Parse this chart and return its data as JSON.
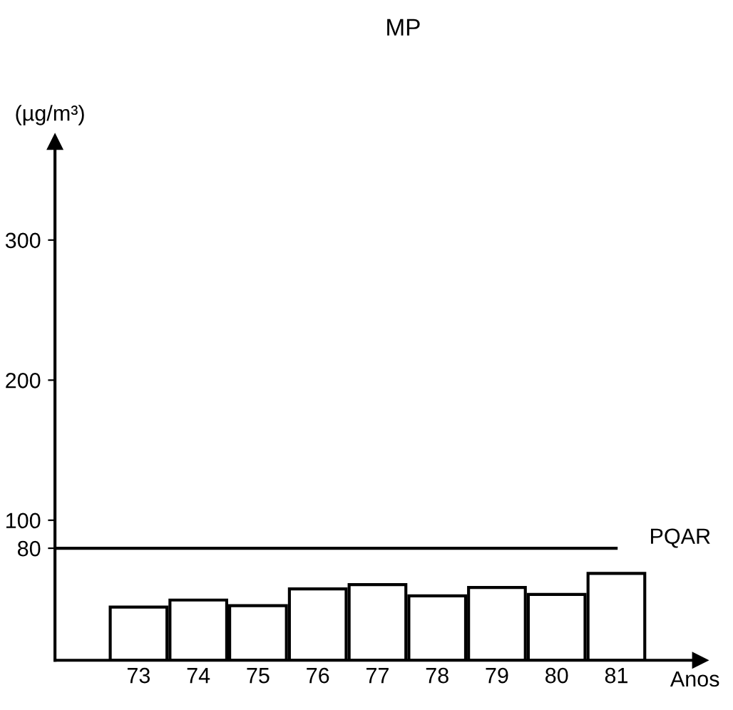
{
  "chart_data": {
    "type": "bar",
    "title": "MP",
    "ylabel": "(µg/m³)",
    "xlabel": "Anos",
    "categories": [
      "73",
      "74",
      "75",
      "76",
      "77",
      "78",
      "79",
      "80",
      "81"
    ],
    "values": [
      38,
      43,
      39,
      51,
      54,
      46,
      52,
      47,
      62
    ],
    "color": "#ffffff",
    "ylim": [
      0,
      370
    ],
    "yticks": [
      80,
      100,
      200,
      300
    ],
    "ref_lines": [
      {
        "axis": "y",
        "value": 80,
        "label": "PQAR"
      }
    ],
    "grid": false,
    "legend": false
  }
}
